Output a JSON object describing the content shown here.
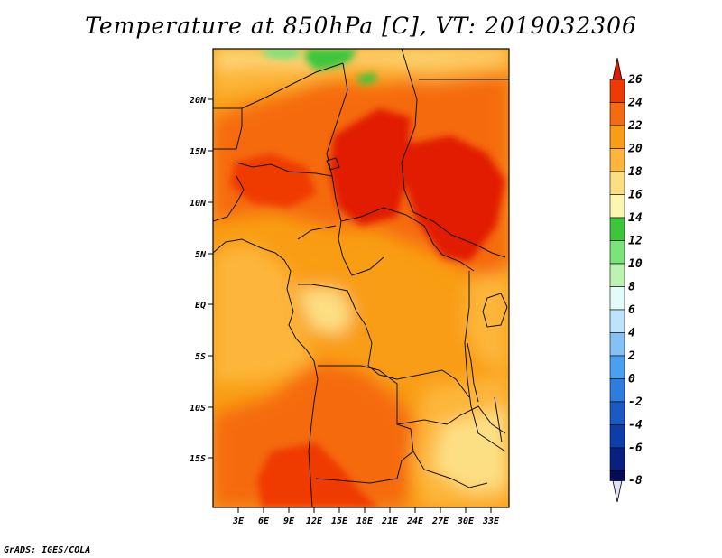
{
  "title": "Temperature at 850hPa [C], VT: 2019032306",
  "credit": "GrADS: IGES/COLA",
  "map": {
    "lat_labels": [
      "20N",
      "15N",
      "10N",
      "5N",
      "EQ",
      "5S",
      "10S",
      "15S"
    ],
    "lon_labels": [
      "3E",
      "6E",
      "9E",
      "12E",
      "15E",
      "18E",
      "21E",
      "24E",
      "27E",
      "30E",
      "33E"
    ]
  },
  "colorbar": {
    "levels": [
      "26",
      "24",
      "22",
      "20",
      "18",
      "16",
      "14",
      "12",
      "10",
      "8",
      "6",
      "4",
      "2",
      "0",
      "-2",
      "-4",
      "-6",
      "-8"
    ],
    "colors": [
      "#e11a06",
      "#f03a06",
      "#f56b10",
      "#f99d14",
      "#fdb63b",
      "#fddf83",
      "#fdf6b0",
      "#3cc63c",
      "#7ae37a",
      "#bdf3b0",
      "#e3fcfa",
      "#bde4fa",
      "#84c2f5",
      "#4aa0ee",
      "#2e7cdc",
      "#1b5ac6",
      "#0c3eaa",
      "#0a2080",
      "#070a54",
      "#e1e1f7"
    ]
  }
}
